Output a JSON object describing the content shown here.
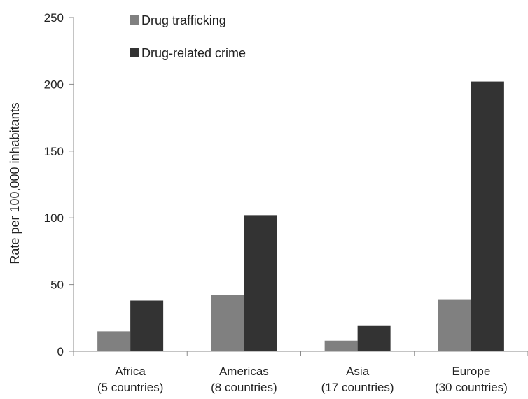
{
  "chart_data": {
    "type": "bar",
    "title": "",
    "xlabel": "",
    "ylabel": "Rate per 100,000 inhabitants",
    "ylim": [
      0,
      250
    ],
    "yticks": [
      0,
      50,
      100,
      150,
      200,
      250
    ],
    "grid": false,
    "legend_position": "top-left",
    "categories": [
      [
        "Africa",
        "(5 countries)"
      ],
      [
        "Americas",
        "(8 countries)"
      ],
      [
        "Asia",
        "(17 countries)"
      ],
      [
        "Europe",
        "(30 countries)"
      ]
    ],
    "series": [
      {
        "name": "Drug trafficking",
        "color": "#808080",
        "values": [
          15,
          42,
          8,
          39
        ]
      },
      {
        "name": "Drug-related crime",
        "color": "#333333",
        "values": [
          38,
          102,
          19,
          202
        ]
      }
    ]
  }
}
